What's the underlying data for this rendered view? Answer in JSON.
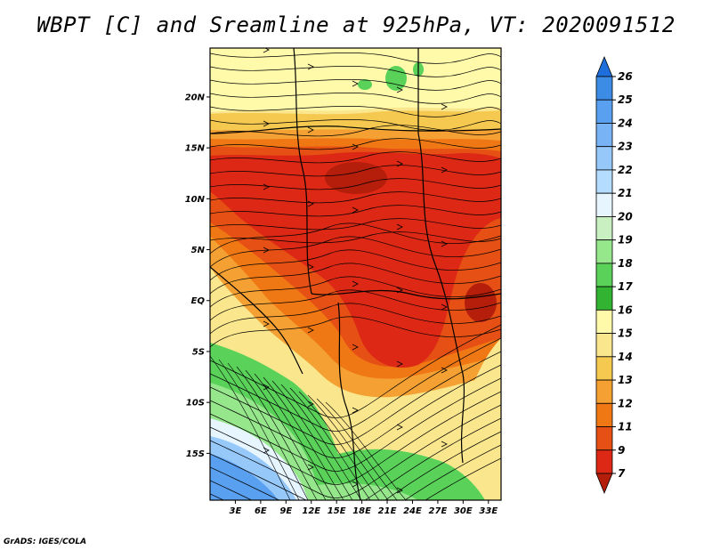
{
  "title": "WBPT [C] and Sreamline at 925hPa, VT: 2020091512",
  "footer": "GrADS: IGES/COLA",
  "map": {
    "lat_labels": [
      "20N",
      "15N",
      "10N",
      "5N",
      "EQ",
      "5S",
      "10S",
      "15S"
    ],
    "lat_values": [
      20,
      15,
      10,
      5,
      0,
      -5,
      -10,
      -15
    ],
    "lon_labels": [
      "3E",
      "6E",
      "9E",
      "12E",
      "15E",
      "18E",
      "21E",
      "24E",
      "27E",
      "30E",
      "33E"
    ],
    "lon_values": [
      3,
      6,
      9,
      12,
      15,
      18,
      21,
      24,
      27,
      30,
      33
    ],
    "lat_range": [
      -19.6,
      24.8
    ],
    "lon_range": [
      0,
      34.5
    ]
  },
  "colorbar": {
    "labels": [
      "7",
      "9",
      "11",
      "12",
      "13",
      "14",
      "15",
      "16",
      "17",
      "18",
      "19",
      "20",
      "21",
      "22",
      "23",
      "24",
      "25",
      "26"
    ],
    "colors": [
      "#1e6fdc",
      "#3c8ce6",
      "#5aa0f0",
      "#78b4f5",
      "#96c8fa",
      "#b4dcff",
      "#e6f5ff",
      "#c8f0c0",
      "#96e68c",
      "#5ad25a",
      "#32b432",
      "#fffaaa",
      "#fae68c",
      "#f5c850",
      "#f5a032",
      "#f07814",
      "#e65014",
      "#dc2814",
      "#b41e0a"
    ]
  }
}
